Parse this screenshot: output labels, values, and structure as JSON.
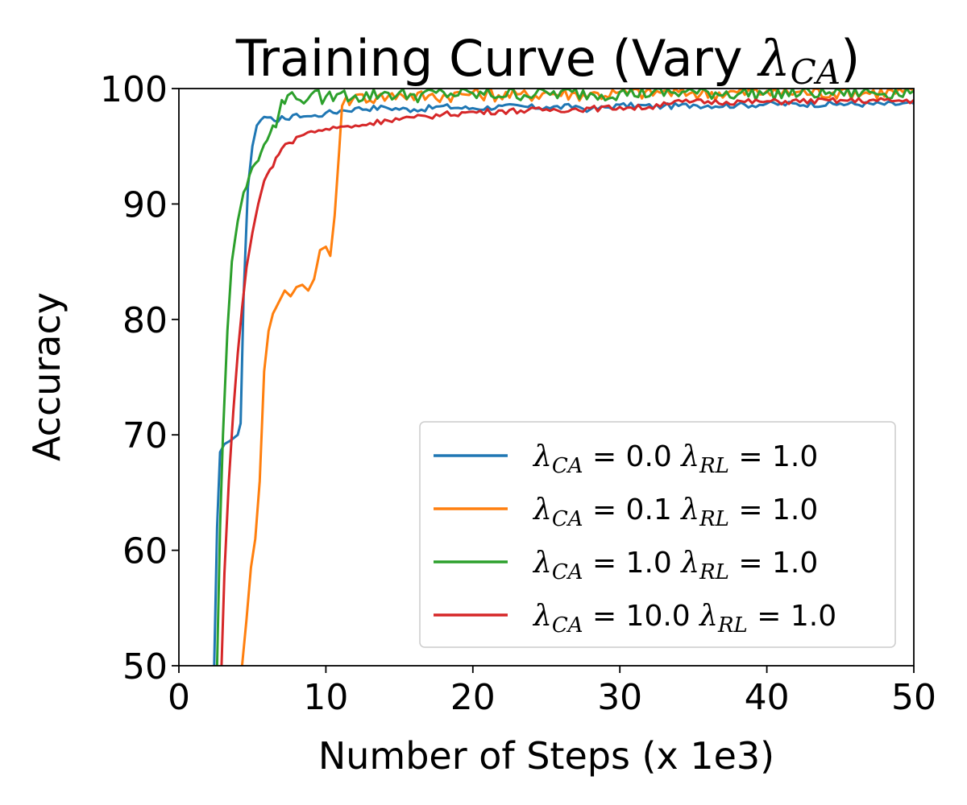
{
  "chart_data": {
    "type": "line",
    "title": "Training Curve (Vary λCA)",
    "title_main": "Training Curve (Vary ",
    "title_symbol": "λ",
    "title_sub": "CA",
    "title_close": ")",
    "xlabel": "Number of Steps (x 1e3)",
    "ylabel": "Accuracy",
    "xlim": [
      0,
      50
    ],
    "ylim": [
      50,
      100
    ],
    "xticks": [
      0,
      10,
      20,
      30,
      40,
      50
    ],
    "yticks": [
      50,
      60,
      70,
      80,
      90,
      100
    ],
    "xtick_labels": [
      "0",
      "10",
      "20",
      "30",
      "40",
      "50"
    ],
    "ytick_labels": [
      "50",
      "60",
      "70",
      "80",
      "90",
      "100"
    ],
    "grid": false,
    "legend_position": "lower-right",
    "series": [
      {
        "name": "λCA = 0.0 λRL = 1.0",
        "lambda_ca": "0.0",
        "lambda_rl": "1.0",
        "color": "#1f77b4",
        "x": [
          2.4,
          2.6,
          2.8,
          3.1,
          3.5,
          4.0,
          4.2,
          4.4,
          4.7,
          5.0,
          5.3,
          5.6,
          6.0,
          6.5,
          7.0,
          7.5,
          8.0,
          9.0,
          10.0,
          11.0,
          12.0,
          14.0,
          16.0,
          18.0,
          20.0,
          22.0,
          25.0,
          27.0,
          28.0,
          30.0,
          33.0,
          35.0,
          38.0,
          40.0,
          45.0,
          50.0
        ],
        "y": [
          50.0,
          62.0,
          68.5,
          69.2,
          69.5,
          70.0,
          71.0,
          82.0,
          91.5,
          95.0,
          96.8,
          97.3,
          97.5,
          97.2,
          97.6,
          97.3,
          97.8,
          97.6,
          97.9,
          98.1,
          98.3,
          98.4,
          98.2,
          98.5,
          98.3,
          98.5,
          98.4,
          98.5,
          98.2,
          98.6,
          98.5,
          98.6,
          98.6,
          98.7,
          98.7,
          98.7
        ]
      },
      {
        "name": "λCA = 0.1 λRL = 1.0",
        "lambda_ca": "0.1",
        "lambda_rl": "1.0",
        "color": "#ff7f0e",
        "x": [
          4.3,
          4.6,
          4.9,
          5.2,
          5.5,
          5.8,
          6.1,
          6.4,
          6.8,
          7.2,
          7.6,
          8.0,
          8.4,
          8.8,
          9.2,
          9.6,
          10.0,
          10.3,
          10.6,
          10.9,
          11.1,
          11.4,
          11.8,
          12.5,
          13.5,
          15.0,
          17.0,
          20.0,
          23.0,
          25.0,
          28.0,
          30.0,
          33.0,
          35.0,
          40.0,
          45.0,
          50.0
        ],
        "y": [
          50.0,
          54.0,
          58.5,
          61.0,
          66.0,
          75.5,
          79.0,
          80.5,
          81.5,
          82.5,
          82.0,
          82.8,
          83.0,
          82.5,
          83.5,
          86.0,
          86.3,
          85.5,
          89.0,
          94.5,
          98.5,
          99.3,
          99.0,
          99.5,
          99.3,
          99.6,
          99.4,
          99.7,
          99.5,
          99.7,
          99.6,
          99.7,
          99.8,
          99.7,
          99.8,
          99.8,
          99.8
        ]
      },
      {
        "name": "λCA = 1.0 λRL = 1.0",
        "lambda_ca": "1.0",
        "lambda_rl": "1.0",
        "color": "#2ca02c",
        "x": [
          2.6,
          2.8,
          3.0,
          3.3,
          3.6,
          4.0,
          4.4,
          4.8,
          5.2,
          5.6,
          6.0,
          6.4,
          6.8,
          7.0,
          7.4,
          8.0,
          9.0,
          10.0,
          11.0,
          12.0,
          14.0,
          16.0,
          18.0,
          20.0,
          25.0,
          30.0,
          35.0,
          40.0,
          45.0,
          50.0
        ],
        "y": [
          50.0,
          62.0,
          70.0,
          79.0,
          85.0,
          88.5,
          91.0,
          92.5,
          93.5,
          94.5,
          95.5,
          96.8,
          97.8,
          99.0,
          99.4,
          99.1,
          99.5,
          99.3,
          99.6,
          99.4,
          99.7,
          99.5,
          99.7,
          99.6,
          99.7,
          99.7,
          99.8,
          99.7,
          99.8,
          99.8
        ]
      },
      {
        "name": "λCA = 10.0 λRL = 1.0",
        "lambda_ca": "10.0",
        "lambda_rl": "1.0",
        "color": "#d62728",
        "x": [
          2.9,
          3.1,
          3.4,
          3.7,
          4.0,
          4.3,
          4.6,
          5.0,
          5.4,
          5.8,
          6.2,
          6.6,
          7.0,
          7.5,
          8.0,
          8.5,
          9.0,
          10.0,
          11.0,
          12.0,
          13.0,
          14.0,
          16.0,
          18.0,
          20.0,
          22.0,
          25.0,
          28.0,
          30.0,
          32.0,
          33.0,
          35.0,
          40.0,
          45.0,
          50.0
        ],
        "y": [
          50.0,
          58.0,
          66.0,
          72.0,
          77.0,
          81.0,
          84.5,
          87.5,
          90.0,
          92.0,
          93.0,
          94.0,
          94.8,
          95.3,
          95.8,
          96.0,
          96.3,
          96.5,
          96.7,
          96.8,
          97.0,
          97.3,
          97.5,
          97.8,
          98.0,
          98.1,
          98.2,
          98.3,
          98.4,
          98.4,
          98.8,
          98.9,
          98.9,
          99.0,
          99.0
        ]
      }
    ]
  }
}
